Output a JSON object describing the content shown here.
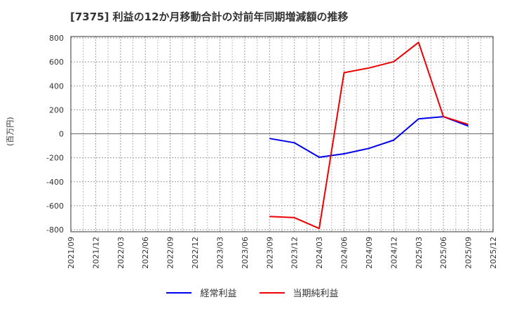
{
  "chart_data": {
    "type": "line",
    "title": "[7375]  利益の12か月移動合計の対前年同期増減額の推移",
    "xlabel": "",
    "ylabel": "(百万円)",
    "ylim": [
      -800,
      800
    ],
    "yticks": [
      800,
      600,
      400,
      200,
      0,
      -200,
      -400,
      -600,
      -800
    ],
    "grid": true,
    "legend_position": "bottom",
    "categories": [
      "2021/09",
      "2021/12",
      "2022/03",
      "2022/06",
      "2022/09",
      "2022/12",
      "2023/03",
      "2023/06",
      "2023/09",
      "2023/12",
      "2024/03",
      "2024/06",
      "2024/09",
      "2024/12",
      "2025/03",
      "2025/06",
      "2025/09",
      "2025/12"
    ],
    "series": [
      {
        "name": "経常利益",
        "color": "#0000ee",
        "values": [
          null,
          null,
          null,
          null,
          null,
          null,
          null,
          null,
          -39,
          -75,
          -196,
          -167,
          -122,
          -53,
          125,
          143,
          65,
          null
        ]
      },
      {
        "name": "当期純利益",
        "color": "#ee0000",
        "values": [
          null,
          null,
          null,
          null,
          null,
          null,
          null,
          null,
          -690,
          -700,
          -790,
          510,
          549,
          602,
          763,
          143,
          78,
          null
        ]
      }
    ]
  },
  "legend": {
    "items": [
      {
        "label": "経常利益",
        "color": "#0000ee"
      },
      {
        "label": "当期純利益",
        "color": "#ee0000"
      }
    ]
  }
}
